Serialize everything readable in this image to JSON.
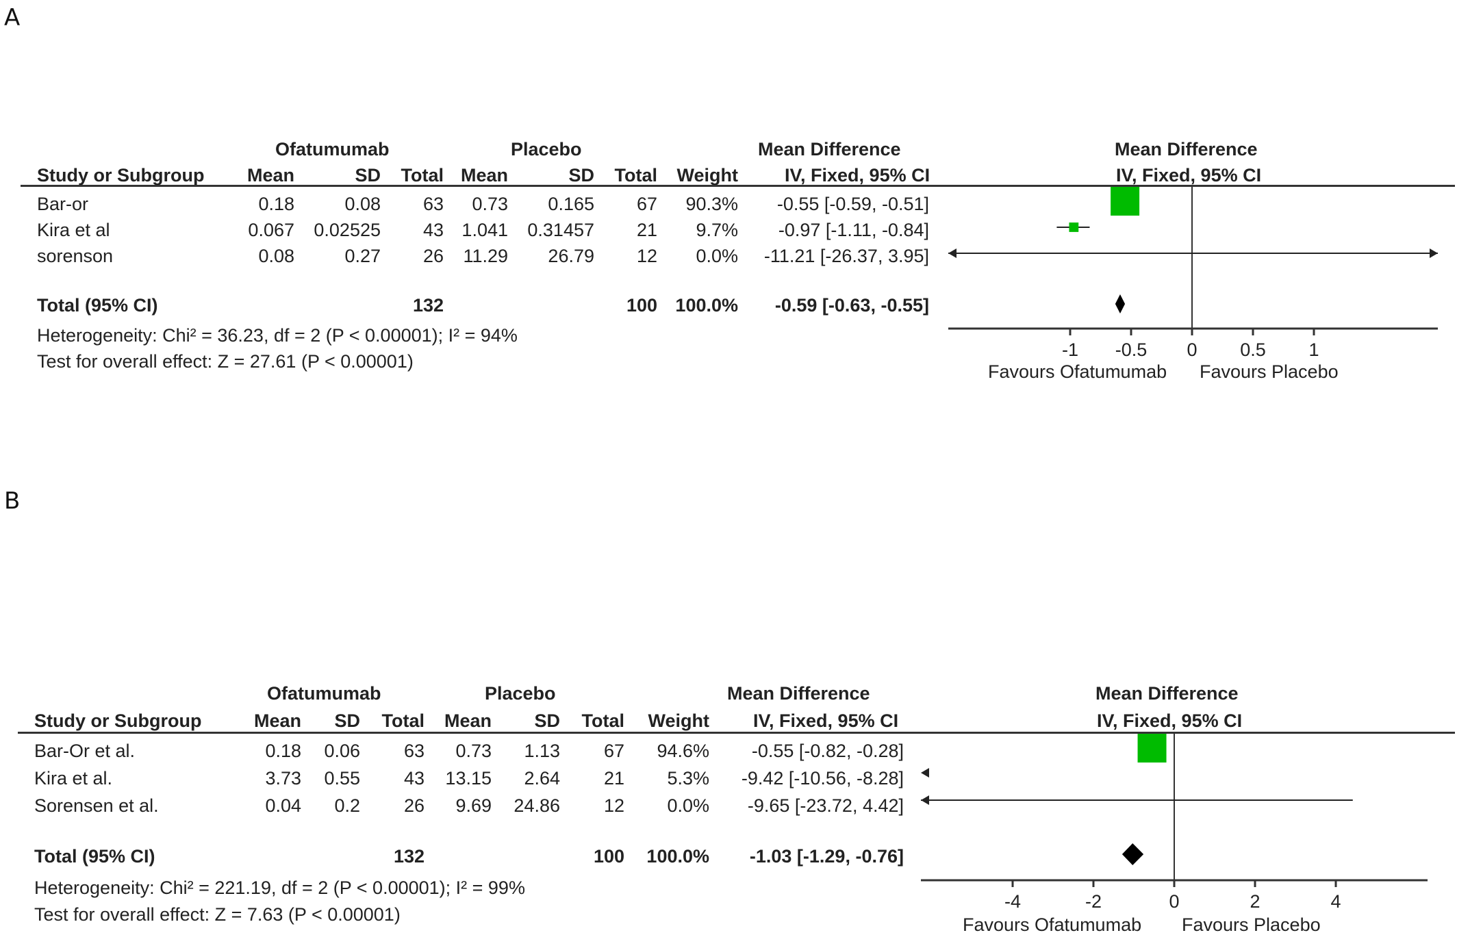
{
  "panels": [
    {
      "letter": "A",
      "group_headers": {
        "experimental": "Ofatumumab",
        "control": "Placebo",
        "md_col": "Mean Difference",
        "plot": "Mean Difference"
      },
      "columns": {
        "study": "Study or Subgroup",
        "mean_e": "Mean",
        "sd_e": "SD",
        "total_e": "Total",
        "mean_c": "Mean",
        "sd_c": "SD",
        "total_c": "Total",
        "weight": "Weight",
        "ci": "IV, Fixed, 95% CI",
        "plot_ci": "IV, Fixed, 95% CI"
      },
      "studies": [
        {
          "name": "Bar-or",
          "mean_e": "0.18",
          "sd_e": "0.08",
          "total_e": "63",
          "mean_c": "0.73",
          "sd_c": "0.165",
          "total_c": "67",
          "weight": "90.3%",
          "ci": "-0.55 [-0.59, -0.51]"
        },
        {
          "name": "Kira et al",
          "mean_e": "0.067",
          "sd_e": "0.02525",
          "total_e": "43",
          "mean_c": "1.041",
          "sd_c": "0.31457",
          "total_c": "21",
          "weight": "9.7%",
          "ci": "-0.97 [-1.11, -0.84]"
        },
        {
          "name": "sorenson",
          "mean_e": "0.08",
          "sd_e": "0.27",
          "total_e": "26",
          "mean_c": "11.29",
          "sd_c": "26.79",
          "total_c": "12",
          "weight": "0.0%",
          "ci": "-11.21 [-26.37, 3.95]"
        }
      ],
      "total": {
        "label": "Total (95% CI)",
        "total_e": "132",
        "total_c": "100",
        "weight": "100.0%",
        "ci": "-0.59 [-0.63, -0.55]"
      },
      "heterogeneity": "Heterogeneity: Chi² = 36.23, df = 2 (P < 0.00001); I² = 94%",
      "overall": "Test for overall effect: Z = 27.61 (P < 0.00001)",
      "favours_left": "Favours Ofatumumab",
      "favours_right": "Favours Placebo"
    },
    {
      "letter": "B",
      "group_headers": {
        "experimental": "Ofatumumab",
        "control": "Placebo",
        "md_col": "Mean Difference",
        "plot": "Mean Difference"
      },
      "columns": {
        "study": "Study or Subgroup",
        "mean_e": "Mean",
        "sd_e": "SD",
        "total_e": "Total",
        "mean_c": "Mean",
        "sd_c": "SD",
        "total_c": "Total",
        "weight": "Weight",
        "ci": "IV, Fixed, 95% CI",
        "plot_ci": "IV, Fixed, 95% CI"
      },
      "studies": [
        {
          "name": "Bar-Or et al.",
          "mean_e": "0.18",
          "sd_e": "0.06",
          "total_e": "63",
          "mean_c": "0.73",
          "sd_c": "1.13",
          "total_c": "67",
          "weight": "94.6%",
          "ci": "-0.55 [-0.82, -0.28]"
        },
        {
          "name": "Kira et al.",
          "mean_e": "3.73",
          "sd_e": "0.55",
          "total_e": "43",
          "mean_c": "13.15",
          "sd_c": "2.64",
          "total_c": "21",
          "weight": "5.3%",
          "ci": "-9.42 [-10.56, -8.28]"
        },
        {
          "name": "Sorensen et al.",
          "mean_e": "0.04",
          "sd_e": "0.2",
          "total_e": "26",
          "mean_c": "9.69",
          "sd_c": "24.86",
          "total_c": "12",
          "weight": "0.0%",
          "ci": "-9.65 [-23.72, 4.42]"
        }
      ],
      "total": {
        "label": "Total (95% CI)",
        "total_e": "132",
        "total_c": "100",
        "weight": "100.0%",
        "ci": "-1.03 [-1.29, -0.76]"
      },
      "heterogeneity": "Heterogeneity: Chi² = 221.19, df = 2 (P < 0.00001); I² = 99%",
      "overall": "Test for overall effect: Z = 7.63 (P < 0.00001)",
      "favours_left": "Favours Ofatumumab",
      "favours_right": "Favours Placebo"
    }
  ],
  "chart_data": [
    {
      "type": "forest",
      "xlim": [
        -2,
        2
      ],
      "ticks": [
        -1,
        -0.5,
        0,
        0.5,
        1
      ],
      "tick_labels": [
        "-1",
        "-0.5",
        "0",
        "0.5",
        "1"
      ],
      "marker_color": "#00bb00",
      "studies": [
        {
          "name": "Bar-or",
          "estimate": -0.55,
          "lower": -0.59,
          "upper": -0.51,
          "weight": 90.3
        },
        {
          "name": "Kira et al",
          "estimate": -0.97,
          "lower": -1.11,
          "upper": -0.84,
          "weight": 9.7
        },
        {
          "name": "sorenson",
          "estimate": -11.21,
          "lower": -26.37,
          "upper": 3.95,
          "weight": 0.0
        }
      ],
      "pooled": {
        "estimate": -0.59,
        "lower": -0.63,
        "upper": -0.55
      }
    },
    {
      "type": "forest",
      "xlim": [
        -6,
        6
      ],
      "ticks": [
        -4,
        -2,
        0,
        2,
        4
      ],
      "tick_labels": [
        "-4",
        "-2",
        "0",
        "2",
        "4"
      ],
      "marker_color": "#00bb00",
      "studies": [
        {
          "name": "Bar-Or et al.",
          "estimate": -0.55,
          "lower": -0.82,
          "upper": -0.28,
          "weight": 94.6
        },
        {
          "name": "Kira et al.",
          "estimate": -9.42,
          "lower": -10.56,
          "upper": -8.28,
          "weight": 5.3
        },
        {
          "name": "Sorensen et al.",
          "estimate": -9.65,
          "lower": -23.72,
          "upper": 4.42,
          "weight": 0.0
        }
      ],
      "pooled": {
        "estimate": -1.03,
        "lower": -1.29,
        "upper": -0.76
      }
    }
  ]
}
